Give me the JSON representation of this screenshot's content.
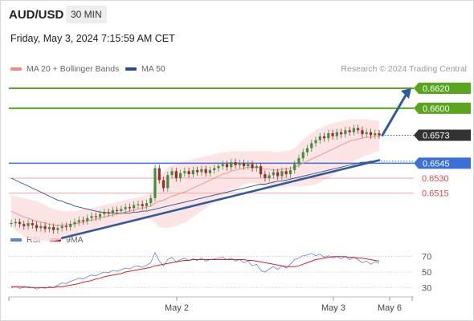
{
  "header": {
    "symbol": "AUD/USD",
    "timeframe": "30 MIN",
    "datetime": "Friday, May 3, 2024 7:15:59 AM CET"
  },
  "legend": {
    "items": [
      {
        "label": "MA 20 + Bollinger Bands",
        "color": "#f28b82"
      },
      {
        "label": "MA 50",
        "color": "#2d4e8c"
      }
    ],
    "credit": "Research © 2024 Trading Central"
  },
  "rsi_legend": {
    "items": [
      {
        "label": "RSI",
        "color": "#5b84d6"
      },
      {
        "label": "9MA",
        "color": "#e02020"
      }
    ]
  },
  "colors": {
    "green": "#5aa51e",
    "blue": "#3d6fd8",
    "red": "#e0474c",
    "dark": "#333333",
    "arrow": "#2d5b9c"
  },
  "chart_data": [
    {
      "type": "candlestick",
      "title": "",
      "x_ticks": [
        "May 2",
        "May 3",
        "May 6"
      ],
      "ylim": [
        0.6485,
        0.6628
      ],
      "price_labels": [
        {
          "value": 0.662,
          "text": "0.6620",
          "style": "green"
        },
        {
          "value": 0.66,
          "text": "0.6600",
          "style": "green"
        },
        {
          "value": 0.6573,
          "text": "0.6573",
          "style": "dark"
        },
        {
          "value": 0.6545,
          "text": "0.6545",
          "style": "blue"
        },
        {
          "value": 0.653,
          "text": "0.6530",
          "style": "red"
        },
        {
          "value": 0.6515,
          "text": "0.6515",
          "style": "red"
        }
      ],
      "closes": [
        0.6485,
        0.6486,
        0.6484,
        0.6482,
        0.6485,
        0.6483,
        0.648,
        0.6482,
        0.6479,
        0.6481,
        0.6478,
        0.648,
        0.6482,
        0.6481,
        0.6484,
        0.6486,
        0.6488,
        0.6487,
        0.649,
        0.6492,
        0.6491,
        0.6494,
        0.6496,
        0.6495,
        0.6498,
        0.6497,
        0.6499,
        0.6501,
        0.65,
        0.6503,
        0.6504,
        0.6502,
        0.6505,
        0.651,
        0.654,
        0.6528,
        0.652,
        0.6533,
        0.6537,
        0.653,
        0.6535,
        0.6537,
        0.6534,
        0.6538,
        0.6536,
        0.6539,
        0.6535,
        0.6538,
        0.654,
        0.6542,
        0.6544,
        0.6541,
        0.6546,
        0.6543,
        0.6545,
        0.6542,
        0.6544,
        0.654,
        0.6542,
        0.6534,
        0.653,
        0.6533,
        0.6536,
        0.6532,
        0.6537,
        0.6534,
        0.6538,
        0.6544,
        0.655,
        0.6556,
        0.656,
        0.6565,
        0.6568,
        0.6572,
        0.657,
        0.6575,
        0.6572,
        0.6576,
        0.6574,
        0.6578,
        0.6576,
        0.658,
        0.6578,
        0.6574,
        0.6576,
        0.6573,
        0.6575,
        0.6573
      ],
      "support_line": {
        "from": {
          "bar": 12,
          "value": 0.647
        },
        "to": {
          "bar": 87,
          "value": 0.6548
        }
      },
      "projection_target": 0.662,
      "ma20": [
        0.6497,
        0.6495,
        0.6493,
        0.6491,
        0.649,
        0.6488,
        0.6487,
        0.6486,
        0.6485,
        0.6484,
        0.6483,
        0.6483,
        0.6483,
        0.6483,
        0.6484,
        0.6484,
        0.6485,
        0.6486,
        0.6487,
        0.6488,
        0.6489,
        0.649,
        0.6491,
        0.6492,
        0.6493,
        0.6494,
        0.6495,
        0.6496,
        0.6497,
        0.6498,
        0.6499,
        0.65,
        0.6501,
        0.6502,
        0.6505,
        0.6507,
        0.6508,
        0.651,
        0.6512,
        0.6513,
        0.6515,
        0.6516,
        0.6518,
        0.652,
        0.6522,
        0.6524,
        0.6526,
        0.6528,
        0.653,
        0.6532,
        0.6534,
        0.6535,
        0.6537,
        0.6538,
        0.6539,
        0.654,
        0.6541,
        0.6541,
        0.6541,
        0.654,
        0.6539,
        0.6539,
        0.6538,
        0.6538,
        0.6539,
        0.6539,
        0.654,
        0.6541,
        0.6543,
        0.6545,
        0.6547,
        0.6549,
        0.6551,
        0.6553,
        0.6555,
        0.6557,
        0.6559,
        0.6561,
        0.6563,
        0.6565,
        0.6567,
        0.6568,
        0.6569,
        0.657,
        0.6571,
        0.6571,
        0.6572,
        0.6572
      ],
      "ma50": [
        0.653,
        0.6528,
        0.6526,
        0.6524,
        0.6522,
        0.652,
        0.6518,
        0.6516,
        0.6514,
        0.6512,
        0.651,
        0.6508,
        0.6507,
        0.6505,
        0.6504,
        0.6502,
        0.6501,
        0.65,
        0.6499,
        0.6498,
        0.6497,
        0.6496,
        0.6496,
        0.6495,
        0.6495,
        0.6495,
        0.6495,
        0.6495,
        0.6495,
        0.6496,
        0.6496,
        0.6497,
        0.6497,
        0.6498,
        0.6499,
        0.65,
        0.6501,
        0.6502,
        0.6503,
        0.6504,
        0.6505,
        0.6506,
        0.6507,
        0.6508,
        0.6509,
        0.651,
        0.6511,
        0.6512,
        0.6513,
        0.6514,
        0.6515,
        0.6516,
        0.6517,
        0.6518,
        0.6519,
        0.652,
        0.6521,
        0.6522,
        0.6523,
        0.6524,
        0.6524,
        0.6525,
        0.6526,
        0.6527,
        0.6527,
        0.6528,
        0.6529,
        0.653,
        0.6531,
        0.6532,
        0.6533,
        0.6534,
        0.6535,
        0.6536,
        0.6537,
        0.6538,
        0.6539,
        0.654,
        0.6541,
        0.6542,
        0.6543,
        0.6544,
        0.6545,
        0.6546,
        0.6546,
        0.6547,
        0.6547,
        0.6548
      ],
      "band_width": [
        0.0016,
        0.0017,
        0.0018,
        0.0019,
        0.0019,
        0.002,
        0.002,
        0.0019,
        0.0018,
        0.0017,
        0.0016,
        0.0015,
        0.0014,
        0.0014,
        0.0013,
        0.0013,
        0.0013,
        0.0013,
        0.0012,
        0.0012,
        0.0012,
        0.0012,
        0.0012,
        0.0012,
        0.0012,
        0.0012,
        0.0012,
        0.0012,
        0.0012,
        0.0012,
        0.0012,
        0.0012,
        0.0012,
        0.0013,
        0.002,
        0.0026,
        0.0028,
        0.003,
        0.0031,
        0.0031,
        0.0031,
        0.0031,
        0.003,
        0.0029,
        0.0028,
        0.0027,
        0.0026,
        0.0025,
        0.0024,
        0.0023,
        0.0022,
        0.0021,
        0.002,
        0.0019,
        0.0018,
        0.0017,
        0.0016,
        0.0016,
        0.0016,
        0.0017,
        0.0018,
        0.0018,
        0.0018,
        0.0018,
        0.0018,
        0.0018,
        0.0018,
        0.0019,
        0.0021,
        0.0023,
        0.0025,
        0.0026,
        0.0027,
        0.0027,
        0.0027,
        0.0027,
        0.0026,
        0.0025,
        0.0024,
        0.0023,
        0.0022,
        0.0021,
        0.002,
        0.0019,
        0.0018,
        0.0017,
        0.0016,
        0.0015
      ]
    },
    {
      "type": "line",
      "title": "",
      "ylim": [
        22,
        80
      ],
      "y_ticks": [
        70,
        50,
        30
      ],
      "series": [
        {
          "name": "RSI",
          "values": [
            30,
            31,
            29,
            30,
            31,
            30,
            28,
            30,
            29,
            31,
            30,
            33,
            36,
            35,
            38,
            40,
            42,
            41,
            44,
            46,
            45,
            48,
            50,
            49,
            52,
            51,
            53,
            55,
            54,
            57,
            58,
            56,
            59,
            62,
            75,
            64,
            58,
            66,
            69,
            63,
            66,
            68,
            65,
            67,
            65,
            68,
            64,
            66,
            67,
            68,
            69,
            66,
            68,
            64,
            66,
            62,
            64,
            58,
            60,
            52,
            50,
            54,
            57,
            53,
            58,
            55,
            60,
            66,
            68,
            71,
            72,
            74,
            71,
            73,
            69,
            71,
            68,
            70,
            67,
            70,
            66,
            69,
            66,
            62,
            64,
            60,
            63,
            61
          ]
        },
        {
          "name": "9MA",
          "values": [
            31,
            31,
            31,
            31,
            30,
            30,
            30,
            30,
            30,
            30,
            30,
            31,
            31,
            32,
            33,
            34,
            35,
            37,
            38,
            39,
            41,
            42,
            44,
            45,
            46,
            47,
            48,
            50,
            51,
            52,
            53,
            54,
            55,
            56,
            58,
            59,
            60,
            61,
            62,
            63,
            64,
            65,
            65,
            66,
            66,
            66,
            66,
            66,
            66,
            66,
            66,
            66,
            66,
            66,
            66,
            66,
            65,
            65,
            64,
            63,
            62,
            61,
            60,
            59,
            58,
            57,
            57,
            57,
            58,
            60,
            62,
            64,
            66,
            67,
            68,
            69,
            70,
            70,
            70,
            70,
            69,
            69,
            68,
            68,
            67,
            66,
            65,
            64
          ]
        }
      ]
    }
  ]
}
